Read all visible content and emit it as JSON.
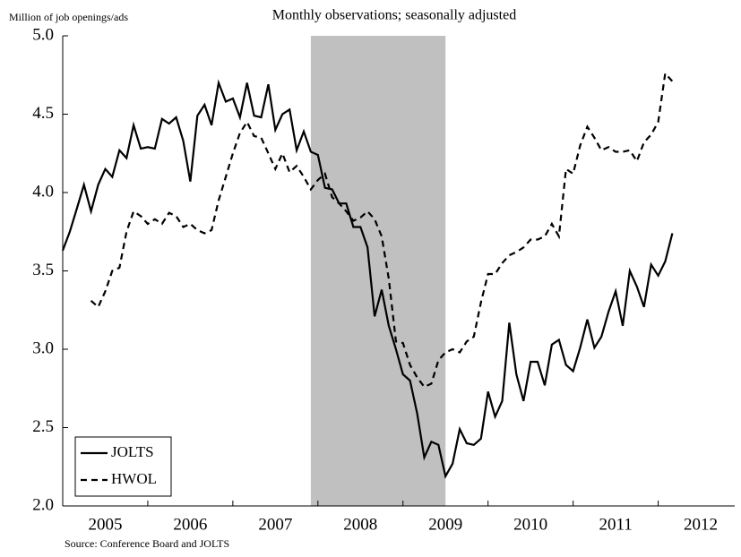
{
  "chart_data": {
    "type": "line",
    "title": "Monthly observations; seasonally adjusted",
    "y_label": "Million of job openings/ads",
    "source": "Source: Conference Board and JOLTS",
    "x": [
      2005,
      2005.083,
      2005.167,
      2005.25,
      2005.333,
      2005.417,
      2005.5,
      2005.583,
      2005.667,
      2005.75,
      2005.833,
      2005.917,
      2006,
      2006.083,
      2006.167,
      2006.25,
      2006.333,
      2006.417,
      2006.5,
      2006.583,
      2006.667,
      2006.75,
      2006.833,
      2006.917,
      2007,
      2007.083,
      2007.167,
      2007.25,
      2007.333,
      2007.417,
      2007.5,
      2007.583,
      2007.667,
      2007.75,
      2007.833,
      2007.917,
      2008,
      2008.083,
      2008.167,
      2008.25,
      2008.333,
      2008.417,
      2008.5,
      2008.583,
      2008.667,
      2008.75,
      2008.833,
      2008.917,
      2009,
      2009.083,
      2009.167,
      2009.25,
      2009.333,
      2009.417,
      2009.5,
      2009.583,
      2009.667,
      2009.75,
      2009.833,
      2009.917,
      2010,
      2010.083,
      2010.167,
      2010.25,
      2010.333,
      2010.417,
      2010.5,
      2010.583,
      2010.667,
      2010.75,
      2010.833,
      2010.917,
      2011,
      2011.083,
      2011.167,
      2011.25,
      2011.333,
      2011.417,
      2011.5,
      2011.583,
      2011.667,
      2011.75,
      2011.833,
      2011.917,
      2012,
      2012.083,
      2012.167
    ],
    "series": [
      {
        "name": "JOLTS",
        "color": "#000000",
        "dash": "solid",
        "values": [
          3.63,
          3.75,
          3.9,
          4.05,
          3.88,
          4.05,
          4.15,
          4.1,
          4.27,
          4.22,
          4.43,
          4.28,
          4.29,
          4.28,
          4.47,
          4.44,
          4.48,
          4.33,
          4.07,
          4.49,
          4.56,
          4.43,
          4.7,
          4.58,
          4.6,
          4.48,
          4.7,
          4.49,
          4.48,
          4.69,
          4.4,
          4.5,
          4.53,
          4.27,
          4.39,
          4.26,
          4.24,
          4.03,
          4.02,
          3.93,
          3.93,
          3.78,
          3.78,
          3.65,
          3.21,
          3.38,
          3.15,
          3.0,
          2.84,
          2.8,
          2.59,
          2.31,
          2.41,
          2.39,
          2.19,
          2.27,
          2.49,
          2.4,
          2.39,
          2.43,
          2.73,
          2.57,
          2.67,
          3.17,
          2.84,
          2.67,
          2.92,
          2.92,
          2.77,
          3.03,
          3.06,
          2.9,
          2.86,
          3.01,
          3.19,
          3.01,
          3.08,
          3.24,
          3.37,
          3.15,
          3.5,
          3.4,
          3.27,
          3.54,
          3.47,
          3.56,
          3.74
        ]
      },
      {
        "name": "HWOL",
        "color": "#000000",
        "dash": "dashed",
        "values": [
          null,
          null,
          null,
          null,
          3.31,
          3.27,
          3.37,
          3.5,
          3.52,
          3.75,
          3.88,
          3.85,
          3.8,
          3.83,
          3.8,
          3.87,
          3.85,
          3.78,
          3.8,
          3.76,
          3.74,
          3.76,
          3.95,
          4.1,
          4.25,
          4.38,
          4.45,
          4.36,
          4.35,
          4.25,
          4.15,
          4.25,
          4.13,
          4.17,
          4.1,
          4.02,
          4.08,
          4.12,
          3.97,
          3.93,
          3.88,
          3.82,
          3.84,
          3.88,
          3.83,
          3.72,
          3.45,
          3.05,
          3.04,
          2.9,
          2.82,
          2.76,
          2.78,
          2.93,
          2.98,
          3.0,
          2.98,
          3.05,
          3.08,
          3.3,
          3.48,
          3.48,
          3.55,
          3.6,
          3.62,
          3.65,
          3.7,
          3.7,
          3.72,
          3.8,
          3.72,
          4.15,
          4.12,
          4.3,
          4.42,
          4.35,
          4.27,
          4.29,
          4.26,
          4.26,
          4.27,
          4.2,
          4.32,
          4.37,
          4.45,
          4.76,
          4.71
        ]
      }
    ],
    "shaded_region": [
      2007.917,
      2009.5
    ],
    "shade_color": "#c0c0c0",
    "xlim": [
      2005,
      2012.9
    ],
    "xticks": [
      2005,
      2006,
      2007,
      2008,
      2009,
      2010,
      2011,
      2012
    ],
    "year_labels": [
      "2005",
      "2006",
      "2007",
      "2008",
      "2009",
      "2010",
      "2011",
      "2012"
    ],
    "ylim": [
      2,
      5
    ],
    "yticks": [
      {
        "value": 2,
        "label": "2.0"
      },
      {
        "value": 2.5,
        "label": "2.5"
      },
      {
        "value": 3,
        "label": "3.0"
      },
      {
        "value": 3.5,
        "label": "3.5"
      },
      {
        "value": 4,
        "label": "4.0"
      },
      {
        "value": 4.5,
        "label": "4.5"
      },
      {
        "value": 5,
        "label": "5.0"
      }
    ],
    "legend": "lower left"
  }
}
